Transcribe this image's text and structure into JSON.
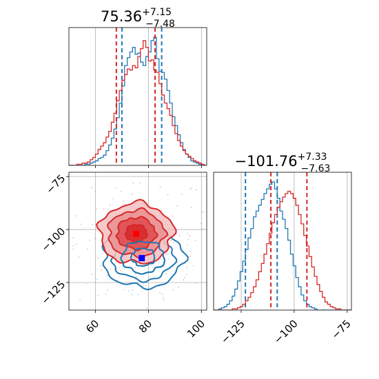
{
  "chart_data": [
    {
      "type": "histogram",
      "panel": "marginal-x",
      "title": {
        "value": "75.36",
        "plus": "+7.15",
        "minus": "−7.48"
      },
      "xlim": [
        50,
        102
      ],
      "bin_edges_start": 50,
      "bin_width": 1,
      "grid": true,
      "series": [
        {
          "color": "#d62728",
          "counts": [
            0,
            0,
            0,
            1,
            1,
            2,
            2,
            3,
            5,
            7,
            10,
            14,
            17,
            20,
            25,
            30,
            38,
            46,
            57,
            66,
            75,
            80,
            85,
            84,
            88,
            86,
            96,
            103,
            110,
            104,
            92,
            93,
            84,
            82,
            72,
            62,
            55,
            50,
            44,
            35,
            28,
            22,
            17,
            13,
            10,
            8,
            6,
            4,
            3,
            2,
            1,
            0
          ],
          "quantile_lines": [
            67.9,
            82.5
          ]
        },
        {
          "color": "#1f77b4",
          "counts": [
            0,
            0,
            0,
            0,
            0,
            0,
            1,
            1,
            2,
            3,
            4,
            6,
            7,
            9,
            13,
            18,
            24,
            32,
            42,
            55,
            70,
            88,
            95,
            100,
            104,
            98,
            99,
            91,
            88,
            96,
            100,
            110,
            113,
            94,
            83,
            82,
            76,
            66,
            55,
            43,
            35,
            27,
            20,
            14,
            10,
            7,
            4,
            3,
            2,
            1,
            0,
            0
          ],
          "quantile_lines": [
            70.0,
            85.0
          ]
        }
      ]
    },
    {
      "type": "contour",
      "panel": "joint",
      "xlim": [
        50,
        102
      ],
      "ylim": [
        -138,
        -73
      ],
      "xticks": [
        "60",
        "80",
        "100"
      ],
      "yticks": [
        "−75",
        "−100",
        "−125"
      ],
      "grid": true,
      "series": [
        {
          "color": "#d62728",
          "center": [
            75.4,
            -101.8
          ],
          "sigma": [
            7.3,
            7.5
          ],
          "filled": true
        },
        {
          "color": "#1f77b4",
          "center": [
            78.0,
            -113.0
          ],
          "sigma": [
            8.0,
            7.5
          ],
          "filled": false
        }
      ],
      "markers": [
        {
          "color": "#ff0000",
          "x": 75.4,
          "y": -102.0
        },
        {
          "color": "#0000ff",
          "x": 77.5,
          "y": -113.5
        }
      ]
    },
    {
      "type": "histogram",
      "panel": "marginal-y",
      "title": {
        "value": "−101.76",
        "plus": "+7.33",
        "minus": "−7.63"
      },
      "xlim": [
        -138,
        -73
      ],
      "xticks": [
        "−125",
        "−100",
        "−75"
      ],
      "bin_edges_start": -138,
      "bin_width": 1.25,
      "grid": true,
      "series": [
        {
          "color": "#1f77b4",
          "counts": [
            0,
            0,
            1,
            2,
            3,
            5,
            8,
            12,
            18,
            25,
            33,
            42,
            52,
            62,
            70,
            80,
            85,
            90,
            95,
            100,
            104,
            108,
            110,
            104,
            96,
            85,
            78,
            70,
            60,
            48,
            38,
            28,
            20,
            13,
            8,
            5,
            3,
            2,
            1,
            0,
            0,
            0,
            0,
            0,
            0,
            0,
            0,
            0,
            0,
            0,
            0,
            0
          ],
          "quantile_lines": [
            -123.0,
            -108.0
          ]
        },
        {
          "color": "#d62728",
          "counts": [
            0,
            0,
            0,
            0,
            0,
            0,
            0,
            1,
            1,
            2,
            3,
            5,
            8,
            11,
            15,
            20,
            26,
            33,
            40,
            48,
            57,
            66,
            75,
            82,
            88,
            93,
            97,
            100,
            102,
            100,
            96,
            90,
            82,
            74,
            64,
            55,
            46,
            37,
            29,
            22,
            16,
            11,
            7,
            5,
            3,
            2,
            1,
            1,
            0,
            0,
            0,
            0
          ],
          "quantile_lines": [
            -111.0,
            -94.0
          ]
        }
      ]
    }
  ]
}
